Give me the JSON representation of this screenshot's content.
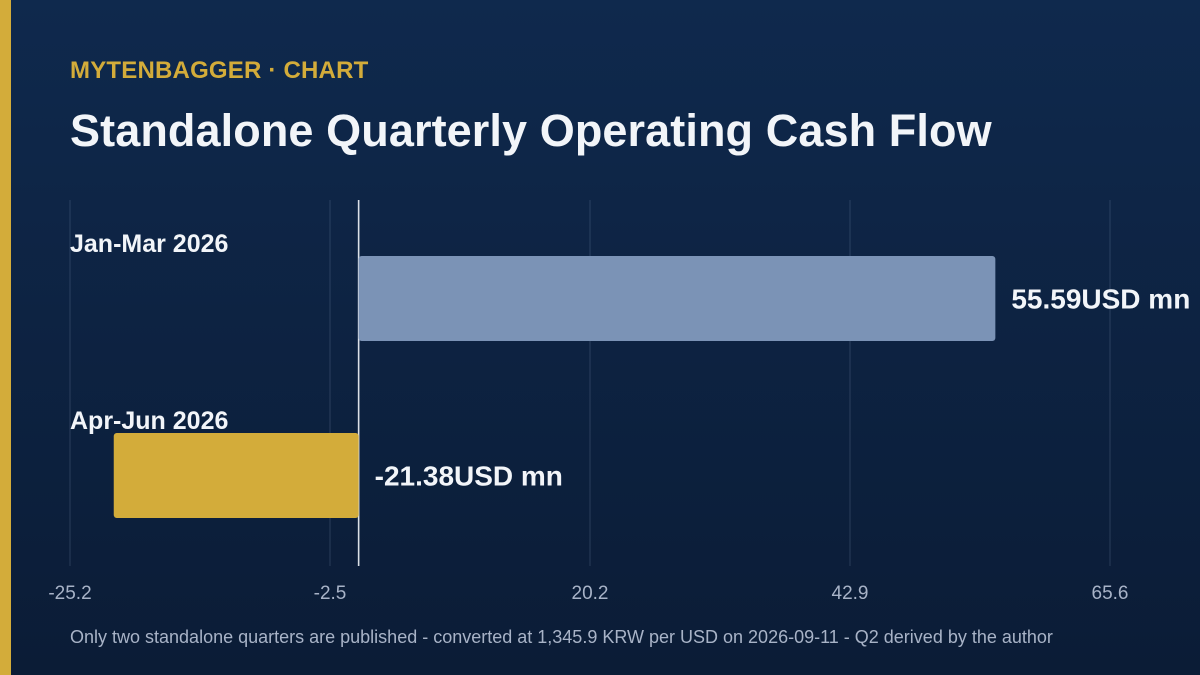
{
  "header": {
    "brand": "MYTENBAGGER · CHART",
    "title": "Standalone Quarterly Operating Cash Flow"
  },
  "footer": {
    "source": "Only two standalone quarters are published - converted at 1,345.9 KRW per USD on 2026-09-11 - Q2 derived by the author"
  },
  "colors": {
    "background_top": "#0f294d",
    "background_bottom": "#0b1c36",
    "accent": "#d3ac3a",
    "positive_bar": "#7b93b6",
    "negative_bar": "#d3ac3a",
    "text": "#f2f5f9",
    "muted_text": "#a8b3c7"
  },
  "chart_data": {
    "type": "bar",
    "orientation": "horizontal",
    "title": "Standalone Quarterly Operating Cash Flow",
    "categories": [
      "Jan-Mar 2026",
      "Apr-Jun 2026"
    ],
    "values": [
      55.59,
      -21.38
    ],
    "unit": "USD mn",
    "value_labels": [
      "55.59USD mn",
      "-21.38USD mn"
    ],
    "xlim": [
      -25.2,
      65.6
    ],
    "xticks": [
      -25.2,
      -2.5,
      20.2,
      42.9,
      65.6
    ],
    "xtick_labels": [
      "-25.2",
      "-2.5",
      "20.2",
      "42.9",
      "65.6"
    ],
    "xlabel": "",
    "ylabel": "",
    "grid": true,
    "zero_line": true
  }
}
